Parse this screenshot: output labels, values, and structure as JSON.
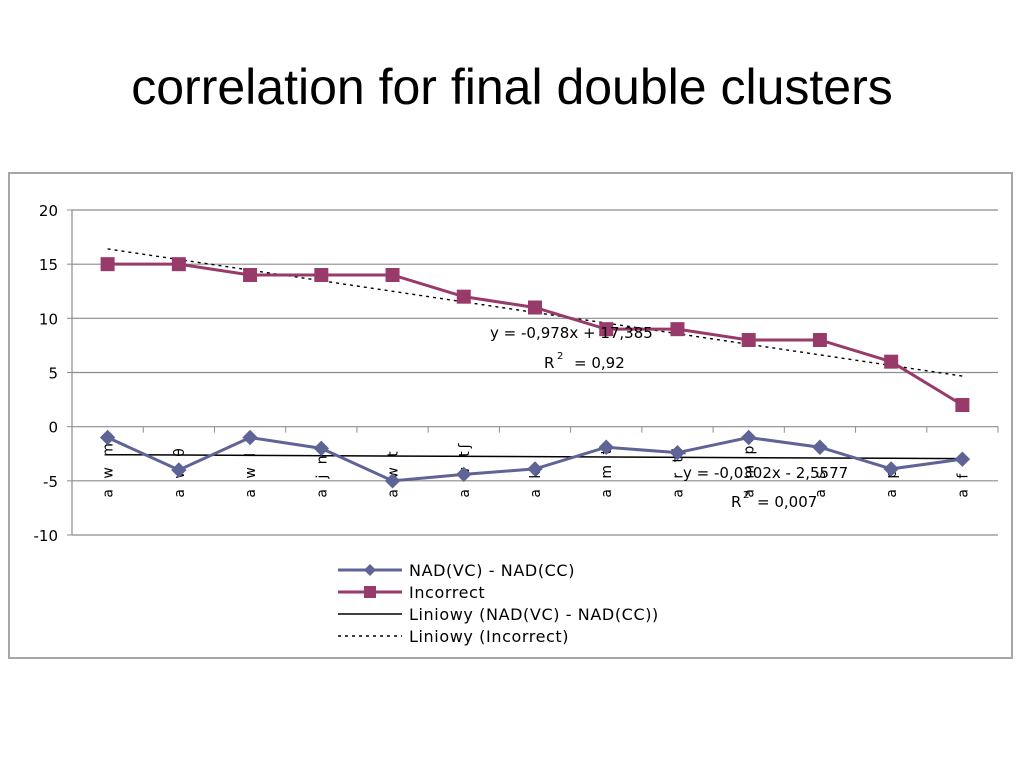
{
  "slide": {
    "title": "correlation for final double clusters"
  },
  "chart_data": {
    "type": "line",
    "categories": [
      "a w m",
      "a w θ",
      "a w l",
      "a j n",
      "a w t",
      "a w tʃ",
      "a k",
      "a m t",
      "a r tʃ",
      "a m p",
      "a s",
      "a p",
      "a f"
    ],
    "series": [
      {
        "name": "NAD(VC) - NAD(CC)",
        "values": [
          -1,
          -4,
          -1,
          -2,
          -5,
          -4.4,
          -3.9,
          -1.9,
          -2.4,
          -1,
          -1.9,
          -3.9,
          -3
        ],
        "color": "#5f6496",
        "marker": "diamond"
      },
      {
        "name": "Incorrect",
        "values": [
          15,
          15,
          14,
          14,
          14,
          12,
          11,
          9,
          9,
          8,
          8,
          6,
          2
        ],
        "color": "#983a6a",
        "marker": "square"
      }
    ],
    "trendlines": [
      {
        "name": "Liniowy (NAD(VC) - NAD(CC))",
        "slope": -0.0302,
        "intercept": -2.5577,
        "style": "solid",
        "color": "#000000",
        "equation": "y = -0,0302x - 2,5577",
        "r2_label": "R",
        "r2_exp": "2",
        "r2_value": "= 0,007"
      },
      {
        "name": "Liniowy (Incorrect)",
        "slope": -0.978,
        "intercept": 17.385,
        "style": "dotted",
        "color": "#000000",
        "equation": "y = -0,978x + 17,385",
        "r2_label": "R",
        "r2_exp": "2",
        "r2_value": "= 0,92"
      }
    ],
    "y_ticks": [
      "20",
      "15",
      "10",
      "5",
      "0",
      "-5",
      "-10"
    ],
    "ylim": [
      -10,
      20
    ],
    "grid": true,
    "legend_position": "bottom"
  }
}
